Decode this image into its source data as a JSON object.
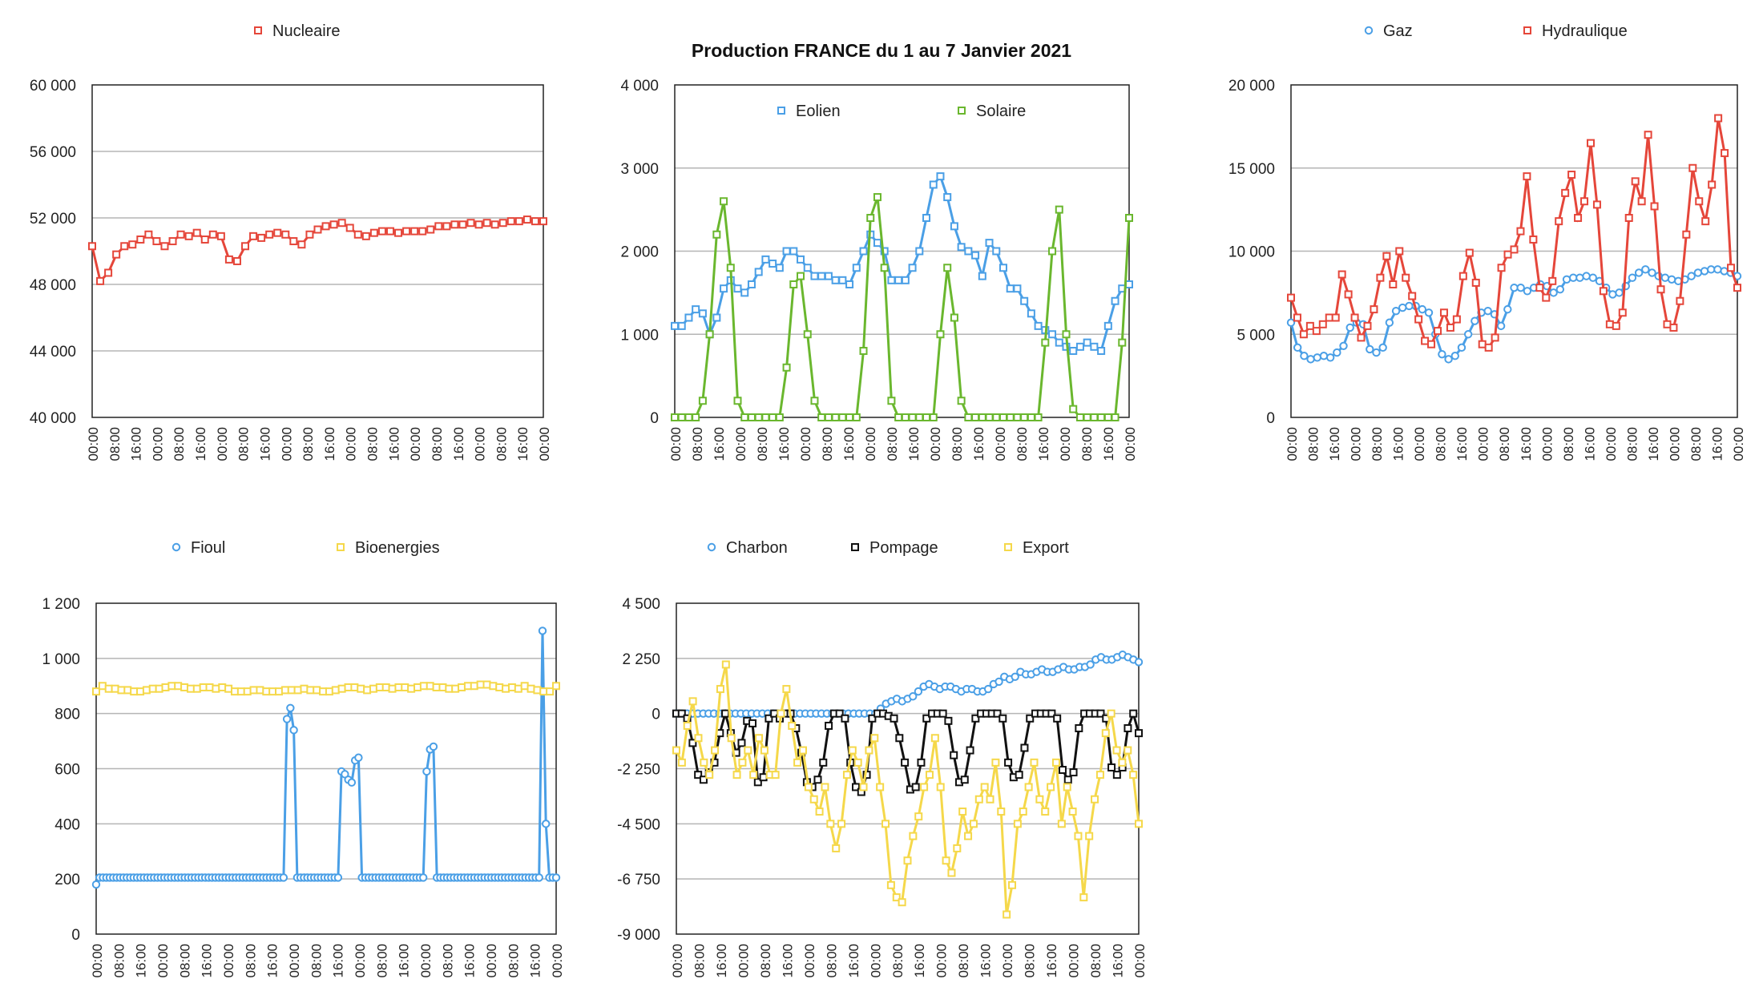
{
  "title": "Production FRANCE du 1 au 7 Janvier 2021",
  "colors": {
    "blue": "#4a9fe6",
    "red": "#e5463a",
    "green": "#6ab72e",
    "yellow": "#f5d84a",
    "black": "#111111"
  },
  "chart_data": [
    {
      "type": "line",
      "title": "",
      "x_ticks": [
        "00:00",
        "08:00",
        "16:00",
        "00:00",
        "08:00",
        "16:00",
        "00:00",
        "08:00",
        "16:00",
        "00:00",
        "08:00",
        "16:00",
        "00:00",
        "08:00",
        "16:00",
        "00:00",
        "08:00",
        "16:00",
        "00:00",
        "08:00",
        "16:00",
        "00:00"
      ],
      "ylim": [
        40000,
        60000
      ],
      "y_ticks": [
        "40 000",
        "44 000",
        "48 000",
        "52 000",
        "56 000",
        "60 000"
      ],
      "legend": [
        "Nucleaire"
      ],
      "series": [
        {
          "name": "Nucleaire",
          "color": "red",
          "marker": "square",
          "values": [
            50300,
            48200,
            48700,
            49800,
            50300,
            50400,
            50700,
            51000,
            50600,
            50300,
            50600,
            51000,
            50900,
            51100,
            50700,
            51000,
            50900,
            49500,
            49400,
            50300,
            50900,
            50800,
            51000,
            51100,
            51000,
            50600,
            50400,
            51000,
            51300,
            51500,
            51600,
            51700,
            51400,
            51000,
            50900,
            51100,
            51200,
            51200,
            51100,
            51200,
            51200,
            51200,
            51300,
            51500,
            51500,
            51600,
            51600,
            51700,
            51600,
            51700,
            51600,
            51700,
            51800,
            51800,
            51900,
            51800,
            51800
          ]
        }
      ]
    },
    {
      "type": "line",
      "title": "",
      "x_ticks": [
        "00:00",
        "08:00",
        "16:00",
        "00:00",
        "08:00",
        "16:00",
        "00:00",
        "08:00",
        "16:00",
        "00:00",
        "08:00",
        "16:00",
        "00:00",
        "08:00",
        "16:00",
        "00:00",
        "08:00",
        "16:00",
        "00:00",
        "08:00",
        "16:00",
        "00:00"
      ],
      "ylim": [
        0,
        4000
      ],
      "y_ticks": [
        "0",
        "1 000",
        "2 000",
        "3 000",
        "4 000"
      ],
      "legend": [
        "Eolien",
        "Solaire"
      ],
      "series": [
        {
          "name": "Eolien",
          "color": "blue",
          "marker": "square",
          "values": [
            1100,
            1100,
            1200,
            1300,
            1250,
            1000,
            1200,
            1550,
            1650,
            1550,
            1500,
            1600,
            1750,
            1900,
            1850,
            1800,
            2000,
            2000,
            1900,
            1800,
            1700,
            1700,
            1700,
            1650,
            1650,
            1600,
            1800,
            2000,
            2200,
            2100,
            2000,
            1650,
            1650,
            1650,
            1800,
            2000,
            2400,
            2800,
            2900,
            2650,
            2300,
            2050,
            2000,
            1950,
            1700,
            2100,
            2000,
            1800,
            1550,
            1550,
            1400,
            1250,
            1100,
            1050,
            1000,
            900,
            850,
            800,
            850,
            900,
            850,
            800,
            1100,
            1400,
            1550,
            1600
          ]
        },
        {
          "name": "Solaire",
          "color": "green",
          "marker": "square",
          "values": [
            0,
            0,
            0,
            0,
            200,
            1000,
            2200,
            2600,
            1800,
            200,
            0,
            0,
            0,
            0,
            0,
            0,
            600,
            1600,
            1700,
            1000,
            200,
            0,
            0,
            0,
            0,
            0,
            0,
            800,
            2400,
            2650,
            1800,
            200,
            0,
            0,
            0,
            0,
            0,
            0,
            1000,
            1800,
            1200,
            200,
            0,
            0,
            0,
            0,
            0,
            0,
            0,
            0,
            0,
            0,
            0,
            900,
            2000,
            2500,
            1000,
            100,
            0,
            0,
            0,
            0,
            0,
            0,
            900,
            2400
          ]
        }
      ]
    },
    {
      "type": "line",
      "title": "",
      "x_ticks": [
        "00:00",
        "08:00",
        "16:00",
        "00:00",
        "08:00",
        "16:00",
        "00:00",
        "08:00",
        "16:00",
        "00:00",
        "08:00",
        "16:00",
        "00:00",
        "08:00",
        "16:00",
        "00:00",
        "08:00",
        "16:00",
        "00:00",
        "08:00",
        "16:00",
        "00:00"
      ],
      "ylim": [
        0,
        20000
      ],
      "y_ticks": [
        "0",
        "5 000",
        "10 000",
        "15 000",
        "20 000"
      ],
      "legend": [
        "Gaz",
        "Hydraulique"
      ],
      "series": [
        {
          "name": "Gaz",
          "color": "blue",
          "marker": "circle",
          "values": [
            5700,
            4200,
            3700,
            3500,
            3600,
            3700,
            3600,
            3900,
            4300,
            5400,
            5700,
            5600,
            4100,
            3900,
            4200,
            5700,
            6400,
            6600,
            6700,
            6700,
            6500,
            6300,
            5000,
            3800,
            3500,
            3700,
            4200,
            5000,
            5800,
            6300,
            6400,
            6200,
            5500,
            6500,
            7800,
            7800,
            7600,
            7800,
            8000,
            7900,
            7500,
            7700,
            8300,
            8400,
            8400,
            8500,
            8400,
            8200,
            7800,
            7400,
            7500,
            7900,
            8400,
            8700,
            8900,
            8700,
            8500,
            8400,
            8300,
            8200,
            8300,
            8500,
            8700,
            8800,
            8900,
            8900,
            8800,
            8700,
            8500
          ]
        },
        {
          "name": "Hydraulique",
          "color": "red",
          "marker": "square",
          "values": [
            7200,
            6000,
            5000,
            5500,
            5200,
            5600,
            6000,
            6000,
            8600,
            7400,
            6000,
            4800,
            5500,
            6500,
            8400,
            9700,
            8000,
            10000,
            8400,
            7300,
            5900,
            4600,
            4400,
            5200,
            6300,
            5400,
            5900,
            8500,
            9900,
            8100,
            4400,
            4200,
            4800,
            9000,
            9800,
            10100,
            11200,
            14500,
            10700,
            7800,
            7200,
            8200,
            11800,
            13500,
            14600,
            12000,
            13000,
            16500,
            12800,
            7600,
            5600,
            5500,
            6300,
            12000,
            14200,
            13000,
            17000,
            12700,
            7700,
            5600,
            5400,
            7000,
            11000,
            15000,
            13000,
            11800,
            14000,
            18000,
            15900,
            9000,
            7800
          ]
        }
      ]
    },
    {
      "type": "line",
      "title": "",
      "x_ticks": [
        "00:00",
        "08:00",
        "16:00",
        "00:00",
        "08:00",
        "16:00",
        "00:00",
        "08:00",
        "16:00",
        "00:00",
        "08:00",
        "16:00",
        "00:00",
        "08:00",
        "16:00",
        "00:00",
        "08:00",
        "16:00",
        "00:00",
        "08:00",
        "16:00",
        "00:00"
      ],
      "ylim": [
        0,
        1200
      ],
      "y_ticks": [
        "0",
        "200",
        "400",
        "600",
        "800",
        "1 000",
        "1 200"
      ],
      "legend": [
        "Fioul",
        "Bioenergies"
      ],
      "series": [
        {
          "name": "Fioul",
          "color": "blue",
          "marker": "circle",
          "values": [
            180,
            205,
            205,
            205,
            205,
            205,
            205,
            205,
            205,
            205,
            205,
            205,
            205,
            205,
            205,
            205,
            205,
            205,
            205,
            205,
            205,
            205,
            205,
            205,
            205,
            205,
            205,
            205,
            205,
            205,
            205,
            205,
            205,
            205,
            205,
            205,
            205,
            205,
            205,
            205,
            205,
            205,
            205,
            205,
            205,
            205,
            205,
            205,
            205,
            205,
            205,
            205,
            205,
            205,
            205,
            205,
            780,
            820,
            740,
            205,
            205,
            205,
            205,
            205,
            205,
            205,
            205,
            205,
            205,
            205,
            205,
            205,
            590,
            580,
            560,
            550,
            630,
            640,
            205,
            205,
            205,
            205,
            205,
            205,
            205,
            205,
            205,
            205,
            205,
            205,
            205,
            205,
            205,
            205,
            205,
            205,
            205,
            590,
            670,
            680,
            205,
            205,
            205,
            205,
            205,
            205,
            205,
            205,
            205,
            205,
            205,
            205,
            205,
            205,
            205,
            205,
            205,
            205,
            205,
            205,
            205,
            205,
            205,
            205,
            205,
            205,
            205,
            205,
            205,
            205,
            205,
            1100,
            400,
            205,
            205,
            205
          ]
        },
        {
          "name": "Bioenergies",
          "color": "yellow",
          "marker": "square",
          "values": [
            880,
            900,
            890,
            890,
            885,
            885,
            880,
            880,
            885,
            890,
            890,
            895,
            900,
            900,
            895,
            890,
            890,
            895,
            895,
            890,
            895,
            890,
            880,
            880,
            880,
            885,
            885,
            880,
            880,
            880,
            885,
            885,
            885,
            890,
            885,
            885,
            880,
            880,
            885,
            890,
            895,
            895,
            890,
            885,
            890,
            895,
            895,
            890,
            895,
            895,
            890,
            895,
            900,
            900,
            895,
            895,
            890,
            890,
            895,
            900,
            900,
            905,
            905,
            900,
            895,
            890,
            895,
            890,
            900,
            890,
            885,
            880,
            880,
            900
          ]
        }
      ]
    },
    {
      "type": "line",
      "title": "",
      "x_ticks": [
        "00:00",
        "08:00",
        "16:00",
        "00:00",
        "08:00",
        "16:00",
        "00:00",
        "08:00",
        "16:00",
        "00:00",
        "08:00",
        "16:00",
        "00:00",
        "08:00",
        "16:00",
        "00:00",
        "08:00",
        "16:00",
        "00:00",
        "08:00",
        "16:00",
        "00:00"
      ],
      "ylim": [
        -9000,
        4500
      ],
      "y_ticks": [
        "-9 000",
        "-6 750",
        "-4 500",
        "-2 250",
        "0",
        "2 250",
        "4 500"
      ],
      "legend": [
        "Charbon",
        "Pompage",
        "Export"
      ],
      "series": [
        {
          "name": "Charbon",
          "color": "blue",
          "marker": "circle",
          "values": [
            0,
            0,
            0,
            0,
            0,
            0,
            0,
            0,
            0,
            0,
            0,
            0,
            0,
            0,
            0,
            0,
            0,
            0,
            0,
            0,
            0,
            0,
            0,
            0,
            0,
            0,
            0,
            0,
            0,
            0,
            0,
            0,
            0,
            0,
            0,
            0,
            0,
            0,
            200,
            400,
            500,
            600,
            500,
            600,
            700,
            900,
            1100,
            1200,
            1100,
            1000,
            1100,
            1100,
            1000,
            900,
            1000,
            1000,
            900,
            900,
            1000,
            1200,
            1300,
            1500,
            1400,
            1500,
            1700,
            1600,
            1600,
            1700,
            1800,
            1700,
            1700,
            1800,
            1900,
            1800,
            1800,
            1900,
            1900,
            2000,
            2200,
            2300,
            2200,
            2200,
            2300,
            2400,
            2300,
            2200,
            2100
          ]
        },
        {
          "name": "Pompage",
          "color": "black",
          "marker": "square",
          "values": [
            0,
            0,
            -200,
            -1200,
            -2500,
            -2700,
            -2400,
            -2000,
            -800,
            0,
            -800,
            -1600,
            -1200,
            -300,
            -400,
            -2800,
            -2600,
            -200,
            0,
            -200,
            0,
            0,
            -600,
            -1600,
            -2800,
            -3000,
            -2700,
            -2000,
            -500,
            0,
            0,
            -200,
            -2000,
            -3000,
            -3200,
            -2500,
            -200,
            0,
            0,
            -100,
            -200,
            -1000,
            -2000,
            -3100,
            -3000,
            -2000,
            -200,
            0,
            0,
            0,
            -300,
            -1700,
            -2800,
            -2700,
            -1500,
            -200,
            0,
            0,
            0,
            0,
            -200,
            -2000,
            -2600,
            -2500,
            -1400,
            -200,
            0,
            0,
            0,
            0,
            -200,
            -2300,
            -2700,
            -2400,
            -600,
            0,
            0,
            0,
            0,
            -200,
            -2200,
            -2500,
            -2200,
            -600,
            0,
            -800
          ]
        },
        {
          "name": "Export",
          "color": "yellow",
          "marker": "square",
          "values": [
            -1500,
            -2000,
            -500,
            500,
            -1000,
            -2000,
            -2500,
            -1500,
            1000,
            2000,
            -1000,
            -2500,
            -2000,
            -1500,
            -2500,
            -1000,
            -1500,
            -2500,
            -2500,
            0,
            1000,
            -500,
            -2000,
            -1500,
            -3000,
            -3500,
            -4000,
            -3000,
            -4500,
            -5500,
            -4500,
            -2500,
            -1500,
            -2000,
            -3000,
            -1500,
            -1000,
            -3000,
            -4500,
            -7000,
            -7500,
            -7700,
            -6000,
            -5000,
            -4200,
            -3000,
            -2500,
            -1000,
            -3000,
            -6000,
            -6500,
            -5500,
            -4000,
            -5000,
            -4500,
            -3500,
            -3000,
            -3500,
            -2000,
            -4000,
            -8200,
            -7000,
            -4500,
            -4000,
            -3000,
            -2000,
            -3500,
            -4000,
            -3000,
            -2000,
            -4500,
            -3000,
            -4000,
            -5000,
            -7500,
            -5000,
            -3500,
            -2500,
            -800,
            0,
            -1500,
            -2000,
            -1500,
            -2500,
            -4500
          ]
        }
      ]
    }
  ]
}
